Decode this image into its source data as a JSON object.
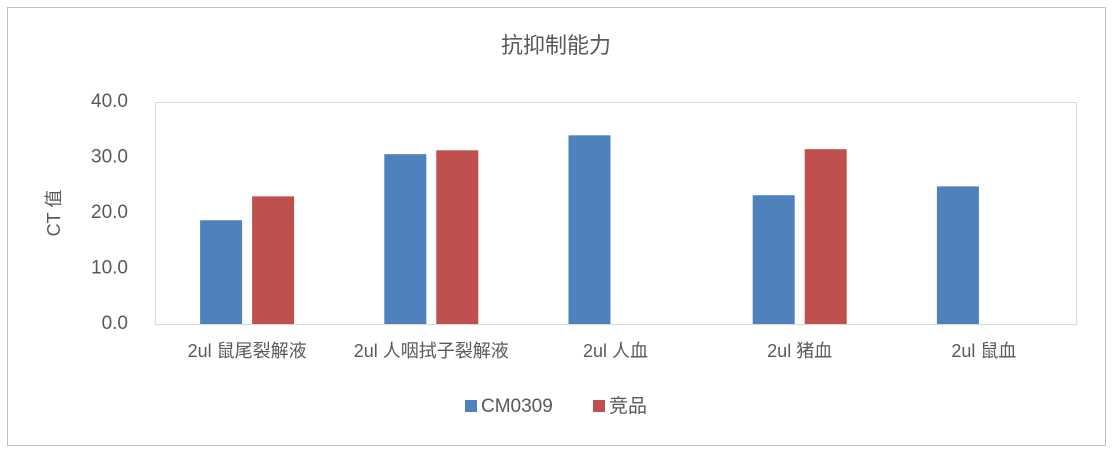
{
  "chart_data": {
    "type": "bar",
    "title": "抗抑制能力",
    "y_label": "CT 值",
    "categories": [
      "2ul 鼠尾裂解液",
      "2ul 人咽拭子裂解液",
      "2ul 人血",
      "2ul 猪血",
      "2ul 鼠血"
    ],
    "series": [
      {
        "name": "CM0309",
        "color": "#4f81bd",
        "values": [
          18.7,
          30.6,
          34.0,
          23.2,
          24.8
        ]
      },
      {
        "name": "竞品",
        "color": "#c0504d",
        "values": [
          23.0,
          31.3,
          null,
          31.5,
          null
        ]
      }
    ],
    "ylim": [
      0,
      40
    ],
    "yticks": [
      {
        "value": 0,
        "label": "0.0"
      },
      {
        "value": 10,
        "label": "10.0"
      },
      {
        "value": 20,
        "label": "20.0"
      },
      {
        "value": 30,
        "label": "30.0"
      },
      {
        "value": 40,
        "label": "40.0"
      }
    ],
    "grid": false,
    "legend": "bottom"
  }
}
